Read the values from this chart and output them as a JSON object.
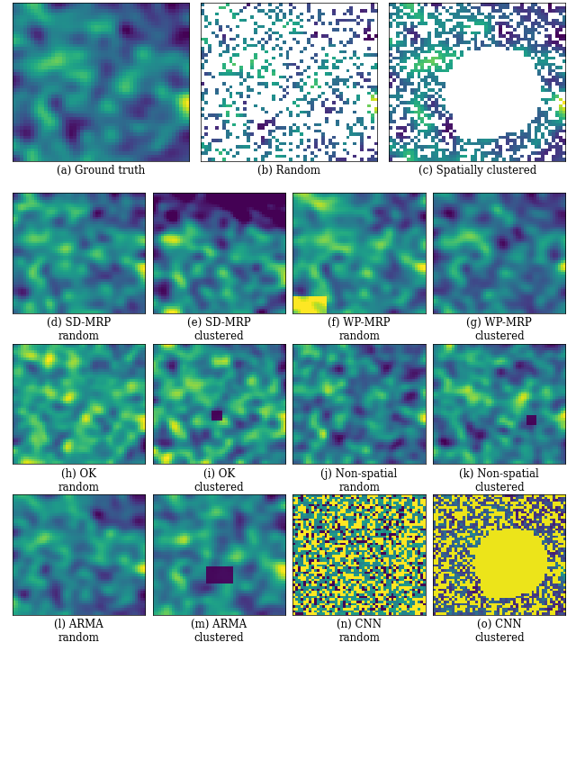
{
  "captions": [
    "(a) Ground truth",
    "(b) Random",
    "(c) Spatially clustered",
    "(d) SD-MRP\nrandom",
    "(e) SD-MRP\nclustered",
    "(f) WP-MRP\nrandom",
    "(g) WP-MRP\nclustered",
    "(h) OK\nrandom",
    "(i) OK\nclustered",
    "(j) Non-spatial\nrandom",
    "(k) Non-spatial\nclustered",
    "(l) ARMA\nrandom",
    "(m) ARMA\nclustered",
    "(n) CNN\nrandom",
    "(o) CNN\nclustered"
  ],
  "cmap": "viridis",
  "figsize": [
    6.4,
    8.45
  ],
  "dpi": 100,
  "caption_fontsize": 8.5
}
